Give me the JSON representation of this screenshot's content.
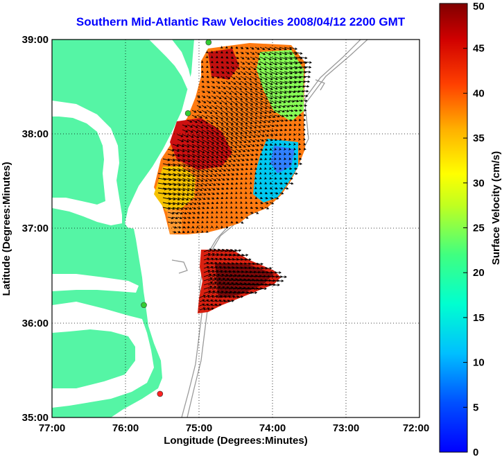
{
  "title": "Southern Mid-Atlantic Raw Velocities 2008/04/12 2200 GMT",
  "map": {
    "xlabel": "Longitude (Degrees:Minutes)",
    "ylabel": "Latitude (Degrees:Minutes)",
    "lon_ticks": [
      "77:00",
      "76:00",
      "75:00",
      "74:00",
      "73:00",
      "72:00"
    ],
    "lat_ticks": [
      "39:00",
      "38:00",
      "37:00",
      "36:00",
      "35:00"
    ],
    "lon_range": [
      -77,
      -72
    ],
    "lat_range": [
      35,
      39
    ],
    "land_color": "#55f5a5",
    "contour_color": "#9a9a9a",
    "vector_color": "#000000",
    "station_markers": [
      {
        "lon": -74.87,
        "lat": 38.97,
        "color": "#33cc33"
      },
      {
        "lon": -75.15,
        "lat": 38.22,
        "color": "#33cc33"
      },
      {
        "lon": -75.75,
        "lat": 36.19,
        "color": "#33cc33"
      },
      {
        "lon": -75.53,
        "lat": 35.25,
        "color": "#ff2222"
      }
    ]
  },
  "colorbar": {
    "label": "Surface Velocity (cm/s)",
    "ticks": [
      "0",
      "5",
      "10",
      "15",
      "20",
      "25",
      "30",
      "35",
      "40",
      "45",
      "50"
    ],
    "min": 0,
    "max": 50
  }
}
